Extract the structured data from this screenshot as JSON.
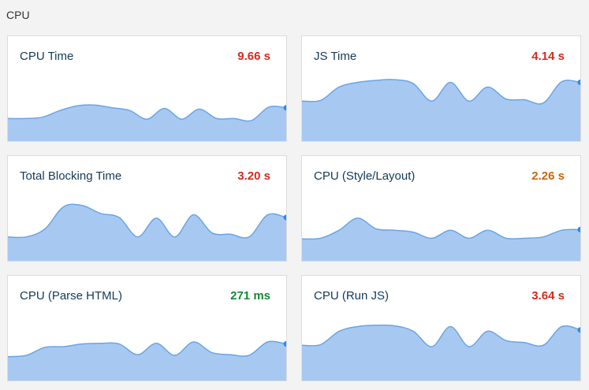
{
  "section_title": "CPU",
  "cards": [
    {
      "title": "CPU Time",
      "value": "9.66 s",
      "value_color": "#d42a20",
      "sparkline": {
        "type": "area",
        "values": [
          36,
          36,
          38,
          48,
          55,
          56,
          52,
          48,
          35,
          51,
          35,
          50,
          36,
          36,
          33,
          53,
          52
        ],
        "ylim": [
          0,
          100
        ],
        "color": "#6aa4e6"
      }
    },
    {
      "title": "JS Time",
      "value": "4.14 s",
      "value_color": "#d42a20",
      "sparkline": {
        "type": "area",
        "values": [
          62,
          63,
          83,
          90,
          93,
          94,
          88,
          62,
          90,
          62,
          83,
          65,
          64,
          59,
          91,
          90
        ],
        "ylim": [
          0,
          100
        ],
        "color": "#6aa4e6"
      }
    },
    {
      "title": "Total Blocking Time",
      "value": "3.20 s",
      "value_color": "#d42a20",
      "sparkline": {
        "type": "area",
        "values": [
          38,
          38,
          50,
          83,
          85,
          73,
          67,
          38,
          66,
          38,
          71,
          44,
          42,
          38,
          71,
          67
        ],
        "ylim": [
          0,
          100
        ],
        "color": "#6aa4e6"
      }
    },
    {
      "title": "CPU (Style/Layout)",
      "value": "2.26 s",
      "value_color": "#c8680e",
      "sparkline": {
        "type": "area",
        "values": [
          35,
          36,
          48,
          66,
          50,
          48,
          45,
          36,
          48,
          36,
          48,
          36,
          36,
          38,
          48,
          49
        ],
        "ylim": [
          0,
          100
        ],
        "color": "#6aa4e6"
      }
    },
    {
      "title": "CPU (Parse HTML)",
      "value": "271 ms",
      "value_color": "#16883a",
      "sparkline": {
        "type": "area",
        "values": [
          38,
          40,
          52,
          53,
          57,
          58,
          57,
          41,
          58,
          40,
          60,
          44,
          41,
          40,
          60,
          57
        ],
        "ylim": [
          0,
          100
        ],
        "color": "#6aa4e6"
      }
    },
    {
      "title": "CPU (Run JS)",
      "value": "3.64 s",
      "value_color": "#d42a20",
      "sparkline": {
        "type": "area",
        "values": [
          55,
          56,
          76,
          83,
          85,
          84,
          76,
          53,
          83,
          53,
          76,
          62,
          59,
          55,
          83,
          78
        ],
        "ylim": [
          0,
          100
        ],
        "color": "#6aa4e6"
      }
    }
  ]
}
